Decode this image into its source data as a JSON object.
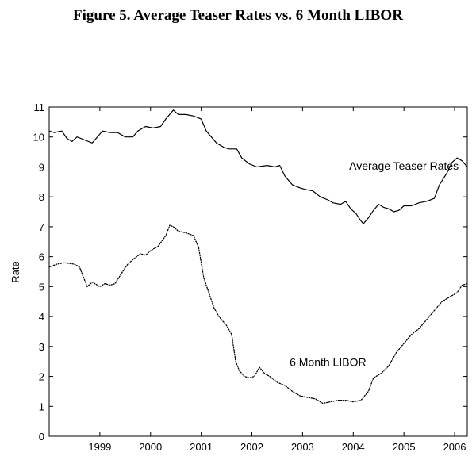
{
  "page": {
    "title": "Figure 5.  Average Teaser Rates vs. 6 Month LIBOR"
  },
  "chart_data": {
    "type": "line",
    "title": "",
    "xlabel": "",
    "ylabel": "Rate",
    "xlim": [
      1998.0,
      2006.25
    ],
    "ylim": [
      0,
      11
    ],
    "yticks": [
      0,
      1,
      2,
      3,
      4,
      5,
      6,
      7,
      8,
      9,
      10,
      11
    ],
    "xticks": [
      {
        "label": "1999",
        "x": 1999.0
      },
      {
        "label": "2000",
        "x": 2000.0
      },
      {
        "label": "2001",
        "x": 2001.0
      },
      {
        "label": "2002",
        "x": 2002.0
      },
      {
        "label": "2003",
        "x": 2003.0
      },
      {
        "label": "2004",
        "x": 2004.0
      },
      {
        "label": "2005",
        "x": 2005.0
      },
      {
        "label": "2006",
        "x": 2006.0
      }
    ],
    "grid": false,
    "series": [
      {
        "name": "Average Teaser Rates",
        "style": "solid",
        "points": [
          [
            1998.0,
            10.2
          ],
          [
            1998.1,
            10.15
          ],
          [
            1998.25,
            10.2
          ],
          [
            1998.35,
            9.95
          ],
          [
            1998.45,
            9.85
          ],
          [
            1998.55,
            10.0
          ],
          [
            1998.7,
            9.9
          ],
          [
            1998.85,
            9.8
          ],
          [
            1998.95,
            10.0
          ],
          [
            1999.05,
            10.2
          ],
          [
            1999.2,
            10.15
          ],
          [
            1999.35,
            10.15
          ],
          [
            1999.5,
            10.0
          ],
          [
            1999.65,
            10.0
          ],
          [
            1999.75,
            10.2
          ],
          [
            1999.9,
            10.35
          ],
          [
            2000.05,
            10.3
          ],
          [
            2000.2,
            10.35
          ],
          [
            2000.3,
            10.6
          ],
          [
            2000.45,
            10.9
          ],
          [
            2000.55,
            10.75
          ],
          [
            2000.7,
            10.75
          ],
          [
            2000.85,
            10.7
          ],
          [
            2001.0,
            10.6
          ],
          [
            2001.1,
            10.2
          ],
          [
            2001.2,
            10.0
          ],
          [
            2001.3,
            9.8
          ],
          [
            2001.45,
            9.65
          ],
          [
            2001.55,
            9.6
          ],
          [
            2001.7,
            9.6
          ],
          [
            2001.8,
            9.3
          ],
          [
            2001.95,
            9.1
          ],
          [
            2002.1,
            9.0
          ],
          [
            2002.3,
            9.05
          ],
          [
            2002.45,
            9.0
          ],
          [
            2002.55,
            9.05
          ],
          [
            2002.65,
            8.7
          ],
          [
            2002.8,
            8.4
          ],
          [
            2002.95,
            8.3
          ],
          [
            2003.05,
            8.25
          ],
          [
            2003.2,
            8.2
          ],
          [
            2003.35,
            8.0
          ],
          [
            2003.5,
            7.9
          ],
          [
            2003.6,
            7.8
          ],
          [
            2003.75,
            7.75
          ],
          [
            2003.85,
            7.85
          ],
          [
            2003.95,
            7.6
          ],
          [
            2004.05,
            7.45
          ],
          [
            2004.15,
            7.2
          ],
          [
            2004.2,
            7.1
          ],
          [
            2004.3,
            7.3
          ],
          [
            2004.4,
            7.55
          ],
          [
            2004.5,
            7.75
          ],
          [
            2004.6,
            7.65
          ],
          [
            2004.7,
            7.6
          ],
          [
            2004.8,
            7.5
          ],
          [
            2004.9,
            7.55
          ],
          [
            2005.0,
            7.7
          ],
          [
            2005.15,
            7.7
          ],
          [
            2005.3,
            7.8
          ],
          [
            2005.45,
            7.85
          ],
          [
            2005.6,
            7.95
          ],
          [
            2005.7,
            8.4
          ],
          [
            2005.85,
            8.8
          ],
          [
            2005.95,
            9.15
          ],
          [
            2006.05,
            9.3
          ],
          [
            2006.15,
            9.2
          ],
          [
            2006.25,
            9.0
          ]
        ]
      },
      {
        "name": "6 Month LIBOR",
        "style": "dotted",
        "points": [
          [
            1998.0,
            5.65
          ],
          [
            1998.15,
            5.75
          ],
          [
            1998.3,
            5.8
          ],
          [
            1998.5,
            5.75
          ],
          [
            1998.6,
            5.65
          ],
          [
            1998.75,
            5.0
          ],
          [
            1998.85,
            5.15
          ],
          [
            1999.0,
            5.0
          ],
          [
            1999.1,
            5.1
          ],
          [
            1999.2,
            5.05
          ],
          [
            1999.3,
            5.1
          ],
          [
            1999.45,
            5.5
          ],
          [
            1999.55,
            5.75
          ],
          [
            1999.65,
            5.9
          ],
          [
            1999.8,
            6.1
          ],
          [
            1999.9,
            6.05
          ],
          [
            2000.0,
            6.2
          ],
          [
            2000.15,
            6.35
          ],
          [
            2000.3,
            6.7
          ],
          [
            2000.38,
            7.05
          ],
          [
            2000.45,
            7.0
          ],
          [
            2000.55,
            6.85
          ],
          [
            2000.7,
            6.8
          ],
          [
            2000.85,
            6.7
          ],
          [
            2000.95,
            6.3
          ],
          [
            2001.05,
            5.3
          ],
          [
            2001.15,
            4.8
          ],
          [
            2001.25,
            4.3
          ],
          [
            2001.35,
            4.0
          ],
          [
            2001.5,
            3.7
          ],
          [
            2001.6,
            3.4
          ],
          [
            2001.68,
            2.5
          ],
          [
            2001.75,
            2.2
          ],
          [
            2001.85,
            2.0
          ],
          [
            2001.95,
            1.95
          ],
          [
            2002.05,
            2.0
          ],
          [
            2002.15,
            2.3
          ],
          [
            2002.25,
            2.1
          ],
          [
            2002.35,
            2.0
          ],
          [
            2002.5,
            1.8
          ],
          [
            2002.65,
            1.7
          ],
          [
            2002.8,
            1.5
          ],
          [
            2002.95,
            1.35
          ],
          [
            2003.1,
            1.3
          ],
          [
            2003.25,
            1.25
          ],
          [
            2003.4,
            1.1
          ],
          [
            2003.55,
            1.15
          ],
          [
            2003.7,
            1.2
          ],
          [
            2003.85,
            1.2
          ],
          [
            2004.0,
            1.15
          ],
          [
            2004.15,
            1.2
          ],
          [
            2004.3,
            1.5
          ],
          [
            2004.4,
            1.95
          ],
          [
            2004.55,
            2.1
          ],
          [
            2004.7,
            2.35
          ],
          [
            2004.85,
            2.8
          ],
          [
            2005.0,
            3.1
          ],
          [
            2005.15,
            3.4
          ],
          [
            2005.3,
            3.6
          ],
          [
            2005.45,
            3.9
          ],
          [
            2005.6,
            4.2
          ],
          [
            2005.75,
            4.5
          ],
          [
            2005.9,
            4.65
          ],
          [
            2006.05,
            4.8
          ],
          [
            2006.15,
            5.05
          ],
          [
            2006.25,
            5.1
          ]
        ]
      }
    ],
    "annotations": [
      {
        "text": "Average Teaser Rates",
        "x": 2005.0,
        "y": 8.9
      },
      {
        "text": "6 Month LIBOR",
        "x": 2003.5,
        "y": 2.35
      }
    ]
  }
}
